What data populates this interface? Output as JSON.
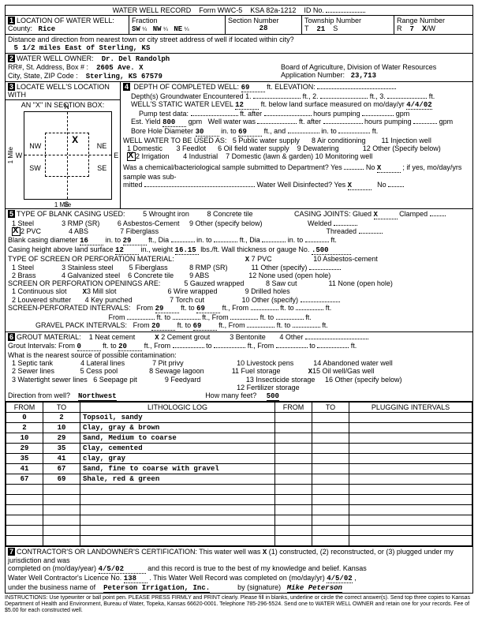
{
  "header": {
    "title": "WATER WELL RECORD",
    "form": "Form WWC-5",
    "ksa": "KSA 82a-1212",
    "idLabel": "ID No."
  },
  "sec1": {
    "label": "LOCATION OF WATER WELL:",
    "countyLabel": "County:",
    "county": "Rice",
    "fractionLabel": "Fraction",
    "f1": "SW",
    "f2": "NW",
    "f3": "NE",
    "q": "¼",
    "sectionLabel": "Section Number",
    "section": "28",
    "townshipLabel": "Township Number",
    "tPrefix": "T",
    "township": "21",
    "tSuffix": "S",
    "rangeLabel": "Range Number",
    "rPrefix": "R",
    "range": "7",
    "rSuffix": "W",
    "rToggle": "X E/",
    "distLabel": "Distance and direction from nearest town or city street address of well if located within city?",
    "dist": "5 1/2 miles East of Sterling, KS"
  },
  "sec2": {
    "label": "WATER WELL OWNER:",
    "owner": "Dr. Del Randolph",
    "addrLabel": "RR#, St. Address, Box # :",
    "addr": "2605 Ave. X",
    "cityLabel": "City, State, ZIP Code :",
    "city": "Sterling, KS  67579",
    "boardLabel": "Board of Agriculture, Division of Water Resources",
    "appLabel": "Application Number:",
    "appNum": "23,713"
  },
  "sec3": {
    "label": "LOCATE WELL'S LOCATION WITH",
    "box": "AN \"X\" IN SECTION BOX:",
    "n": "N",
    "s": "S",
    "e": "E",
    "w": "W",
    "nw": "NW",
    "ne": "NE",
    "sw": "SW",
    "se": "SE",
    "mile": "1 Mile",
    "mark": "X"
  },
  "sec4": {
    "label": "DEPTH OF COMPLETED WELL:",
    "depth": "69",
    "ft": "ft.",
    "elev": "ELEVATION:",
    "groundwater": "Depth(s) Groundwater Encountered   1.",
    "g2": "ft.,  2.",
    "g3": "ft., 3.",
    "gend": "ft.",
    "static": "WELL'S STATIC WATER LEVEL",
    "staticVal": "12",
    "staticText": "ft. below land surface measured on mo/day/yr",
    "staticDate": "4/4/02",
    "pump": "Pump test data:",
    "pumpAfter": "ft. after",
    "hoursPump": "hours pumping",
    "gpm": "gpm",
    "yield": "Est. Yield",
    "yieldVal": "800",
    "yieldUnit": "gpm",
    "wellWater": "Well water was",
    "bore": "Bore Hole Diameter",
    "boreVal": "30",
    "into": "in. to",
    "boreDepth": "69",
    "ftand": "ft., and",
    "into2": "in. to",
    "ft2": "ft.",
    "useLabel": "WELL WATER TO BE USED AS:",
    "use1": "1 Domestic",
    "use2": "2 Irrigation",
    "use3": "3 Feedlot",
    "use4": "4 Industrial",
    "use5": "5 Public water supply",
    "use6": "6 Oil field water supply",
    "use7": "7 Domestic (lawn & garden)",
    "use8": "8 Air conditioning",
    "use9": "9 Dewatering",
    "use10": "10 Monitoring well",
    "use11": "11 Injection well",
    "use12": "12 Other (Specify below)",
    "chem": "Was a chemical/bacteriological sample submitted to Department? Yes",
    "no": "No",
    "chemX": "X",
    "ifyes": "; if yes, mo/day/yrs sample was sub-",
    "mitted": "mitted",
    "disinf": "Water Well Disinfected?  Yes",
    "disinfX": "X",
    "noDis": "No"
  },
  "sec5": {
    "label": "TYPE OF BLANK CASING USED:",
    "c1": "1 Steel",
    "c2": "2 PVC",
    "c3": "3 RMP (SR)",
    "c4": "4 ABS",
    "c5": "5 Wrought iron",
    "c6": "6 Asbestos-Cement",
    "c7": "7 Fiberglass",
    "c8": "8 Concrete tile",
    "c9": "9 Other (specify below)",
    "joints": "CASING JOINTS: Glued",
    "jointsX": "X",
    "clamped": "Clamped",
    "welded": "Welded",
    "threaded": "Threaded",
    "blankDia": "Blank casing diameter",
    "blankDiaVal": "16",
    "into": "in. to",
    "blankDepth": "29",
    "ftDia": "ft., Dia",
    "into2": "in. to",
    "ftDia2": "ft., Dia",
    "into3": "in. to",
    "ft3": "ft.",
    "height": "Casing height above land surface",
    "heightVal": "12",
    "inweight": "in., weight",
    "weightVal": "16.15",
    "lbsft": "lbs./ft. Wall thickness or gauge No.",
    "gauge": ".500",
    "screenLabel": "TYPE OF SCREEN OR PERFORATION MATERIAL:",
    "s1": "1 Steel",
    "s2": "2 Brass",
    "s3": "3 Stainless steel",
    "s4": "4 Galvanized steel",
    "s5": "5 Fiberglass",
    "s6": "6 Concrete tile",
    "s7": "7 PVC",
    "s7x": "X",
    "s8": "8 RMP (SR)",
    "s9": "9 ABS",
    "s10": "10 Asbestos-cement",
    "s11": "11 Other (specify)",
    "s12": "12 None used (open hole)",
    "openLabel": "SCREEN OR PERFORATION OPENINGS ARE:",
    "o1": "1 Continuous slot",
    "o2": "2 Louvered shutter",
    "o3": "3 Mill slot",
    "o3x": "X",
    "o4": "4 Key punched",
    "o5": "5 Gauzed wrapped",
    "o6": "6 Wire wrapped",
    "o7": "7 Torch cut",
    "o8": "8 Saw cut",
    "o9": "9 Drilled holes",
    "o10": "10 Other (specify)",
    "o11": "11 None (open hole)",
    "screenInt": "SCREEN-PERFORATED INTERVALS:",
    "from": "From",
    "to": "to",
    "sFrom": "29",
    "sTo": "69",
    "ftFrom": "ft. to",
    "ftFrom2": "ft., From",
    "ft": "ft.",
    "gravel": "GRAVEL PACK INTERVALS:",
    "gFrom": "20",
    "gTo": "69"
  },
  "sec6": {
    "label": "GROUT MATERIAL:",
    "g1": "1 Neat cement",
    "g2": "2 Cement grout",
    "g2x": "X",
    "g3": "3 Bentonite",
    "g4": "4 Other",
    "intLabel": "Grout Intervals: From",
    "gFrom": "0",
    "gTo": "20",
    "ftto": "ft. to",
    "ftFrom": "ft., From",
    "to": "to",
    "ft": "ft.",
    "contam": "What is the nearest source of possible contamination:",
    "p1": "1 Septic tank",
    "p2": "2 Sewer lines",
    "p3": "3 Watertight sewer lines",
    "p4": "4 Lateral lines",
    "p5": "5 Cess pool",
    "p6": "6 Seepage pit",
    "p7": "7 Pit privy",
    "p8": "8 Sewage lagoon",
    "p9": "9 Feedyard",
    "p10": "10 Livestock pens",
    "p11": "11 Fuel storage",
    "p12": "12 Fertilizer storage",
    "p13": "13 Insecticide storage",
    "p14": "14 Abandoned water well",
    "p15": "15 Oil well/Gas well",
    "p15x": "X",
    "p16": "16 Other (specify below)",
    "dirLabel": "Direction from well?",
    "dir": "Northwest",
    "feetLabel": "How many feet?",
    "feet": "500"
  },
  "log": {
    "fromH": "FROM",
    "toH": "TO",
    "lithH": "LITHOLOGIC LOG",
    "plugH": "PLUGGING INTERVALS",
    "rows": [
      {
        "f": "0",
        "t": "2",
        "d": "Topsoil, sandy"
      },
      {
        "f": "2",
        "t": "10",
        "d": "Clay, gray & brown"
      },
      {
        "f": "10",
        "t": "29",
        "d": "Sand, Medium to coarse"
      },
      {
        "f": "29",
        "t": "35",
        "d": "Clay, cemented"
      },
      {
        "f": "35",
        "t": "41",
        "d": "clay, gray"
      },
      {
        "f": "41",
        "t": "67",
        "d": "Sand, fine to coarse with gravel"
      },
      {
        "f": "67",
        "t": "69",
        "d": "Shale, red & green"
      }
    ]
  },
  "sec7": {
    "label": "CONTRACTOR'S OR LANDOWNER'S CERTIFICATION: This water well was",
    "opt1": "(1) constructed, (2) reconstructed, or (3) plugged under my jurisdiction and was",
    "opt1x": "X",
    "completed": "completed on (mo/day/year)",
    "date1": "4/5/02",
    "rest": "and this record is true to the best of my knowledge and belief. Kansas",
    "lic": "Water Well Contractor's Licence No.",
    "licNum": "138",
    "thisRec": "This Water Well Record was completed on (mo/day/yr)",
    "date2": "4/5/02",
    "under": "under the business name of",
    "biz": "Peterson Irrigation, Inc.",
    "sig": "by (signature)",
    "sigName": "Mike Peterson"
  },
  "footer": "INSTRUCTIONS: Use typewriter or ball point pen. PLEASE PRESS FIRMLY and PRINT clearly. Please fill in blanks, underline or circle the correct answer(s). Send top three copies to Kansas Department of Health and Environment, Bureau of Water, Topeka, Kansas 66620-0001. Telephone 785-296-5524. Send one to WATER WELL OWNER and retain one for your records. Fee of $5.00 for each constructed well."
}
